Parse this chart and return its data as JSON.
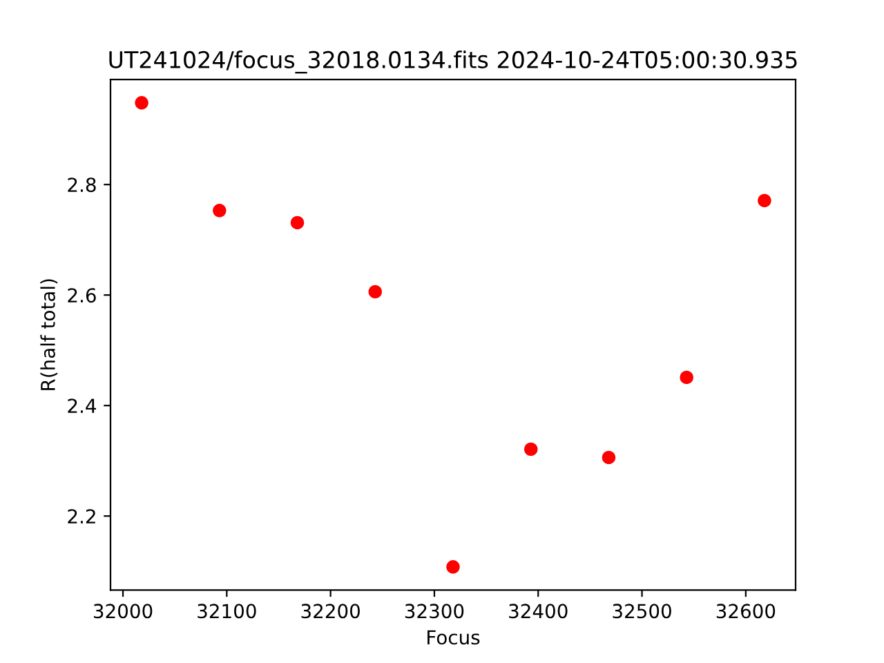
{
  "chart_data": {
    "type": "scatter",
    "title": "UT241024/focus_32018.0134.fits 2024-10-24T05:00:30.935",
    "xlabel": "Focus",
    "ylabel": "R(half total)",
    "x": [
      32018,
      32093,
      32168,
      32243,
      32318,
      32393,
      32468,
      32543,
      32618
    ],
    "series": [
      {
        "color": "#ff0000",
        "values": [
          2.948,
          2.753,
          2.731,
          2.606,
          2.108,
          2.321,
          2.306,
          2.451,
          2.771
        ]
      }
    ],
    "marker": "circle",
    "xlim": [
      31988,
      32648
    ],
    "ylim": [
      2.066,
      2.99
    ],
    "xticks": [
      32000,
      32100,
      32200,
      32300,
      32400,
      32500,
      32600
    ],
    "yticks": [
      2.2,
      2.4,
      2.6,
      2.8
    ],
    "grid": false,
    "legend": false
  }
}
